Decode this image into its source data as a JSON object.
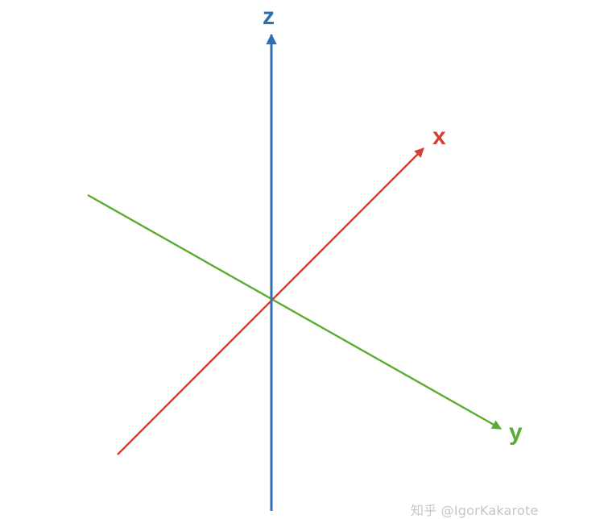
{
  "axes": [
    {
      "id": "z",
      "label": "z",
      "color": "#2e6fb2"
    },
    {
      "id": "x",
      "label": "x",
      "color": "#d2402f"
    },
    {
      "id": "y",
      "label": "y",
      "color": "#5aad33"
    }
  ],
  "watermark": "知乎 @IgorKakarote"
}
